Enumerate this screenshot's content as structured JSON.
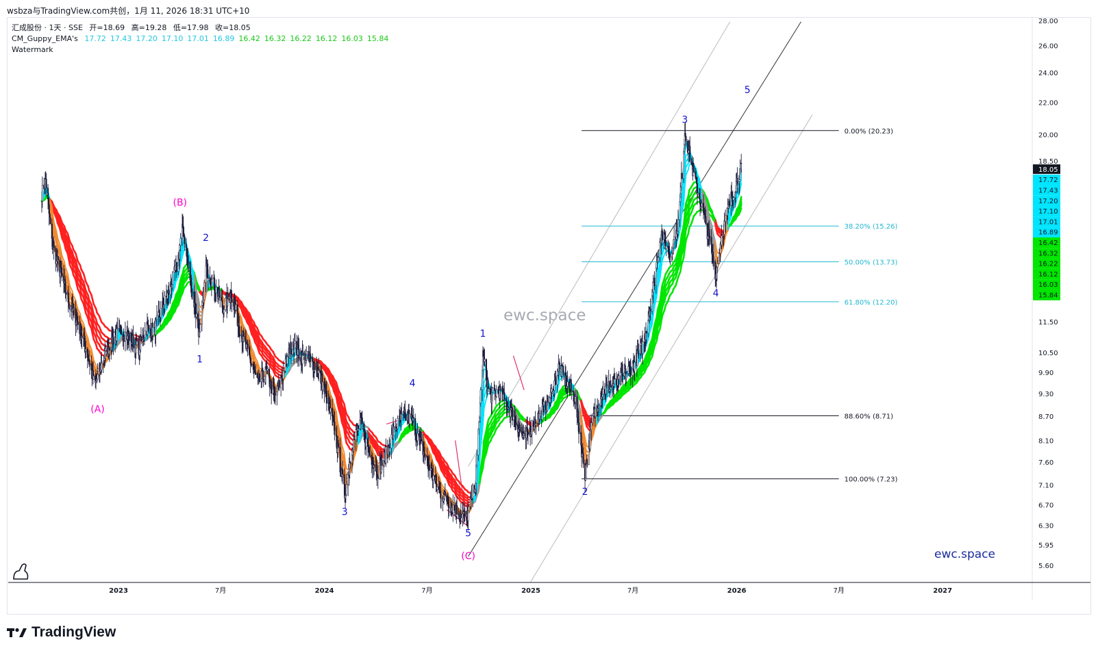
{
  "header": {
    "text": "wsbza与TradingView.com共创，1月 11, 2026 18:31 UTC+10"
  },
  "legend": {
    "symbol": "汇成股份 · 1天 · SSE",
    "open_label": "开=18.69",
    "high_label": "高=19.28",
    "low_label": "低=17.98",
    "close_label": "收=18.05",
    "indicator_name": "CM_Guppy_EMA's",
    "ema_values": [
      "17.72",
      "17.43",
      "17.20",
      "17.10",
      "17.01",
      "16.89",
      "16.42",
      "16.32",
      "16.22",
      "16.12",
      "16.03",
      "15.84"
    ],
    "watermark_label": "Watermark"
  },
  "watermark_text": "ewc.space",
  "brand_corner": "ewc.space",
  "footer": {
    "brand": "TradingView"
  },
  "colors": {
    "fast_ema": "#00e5ff",
    "slow_ema": "#00e600",
    "bear": "#ff2020",
    "bear_fast": "#f08a30",
    "neutral": "#9a9a9a",
    "wave_label": "#1010d0",
    "corrective_label": "#ff00cc",
    "fib_cyan": "#20b8d0",
    "last_price_bg": "#131722"
  },
  "chart_data": {
    "type": "line",
    "scale": "log",
    "ylim": [
      5.3,
      28.0
    ],
    "y_ticks": [
      "28.00",
      "26.00",
      "24.00",
      "22.00",
      "20.00",
      "18.50",
      "11.50",
      "10.50",
      "9.90",
      "9.30",
      "8.70",
      "8.10",
      "7.60",
      "7.10",
      "6.70",
      "6.30",
      "5.95",
      "5.60"
    ],
    "x_ticks": [
      {
        "label": "2023",
        "date": "2023-01-01"
      },
      {
        "label": "7月",
        "date": "2023-07-01"
      },
      {
        "label": "2024",
        "date": "2024-01-01"
      },
      {
        "label": "7月",
        "date": "2024-07-01"
      },
      {
        "label": "2025",
        "date": "2025-01-01"
      },
      {
        "label": "7月",
        "date": "2025-07-01"
      },
      {
        "label": "2026",
        "date": "2026-01-01"
      },
      {
        "label": "7月",
        "date": "2026-07-01"
      },
      {
        "label": "2027",
        "date": "2027-01-01"
      }
    ],
    "price_points": [
      [
        "2022-08-18",
        16.8
      ],
      [
        "2022-08-25",
        17.5
      ],
      [
        "2022-09-05",
        14.5
      ],
      [
        "2022-09-20",
        13.3
      ],
      [
        "2022-10-05",
        12.2
      ],
      [
        "2022-10-20",
        11.5
      ],
      [
        "2022-11-05",
        10.6
      ],
      [
        "2022-11-20",
        9.5
      ],
      [
        "2022-12-05",
        10.3
      ],
      [
        "2022-12-20",
        10.9
      ],
      [
        "2023-01-05",
        11.2
      ],
      [
        "2023-01-20",
        11.0
      ],
      [
        "2023-02-05",
        10.6
      ],
      [
        "2023-02-20",
        11.3
      ],
      [
        "2023-03-05",
        11.2
      ],
      [
        "2023-03-20",
        12.0
      ],
      [
        "2023-04-01",
        12.6
      ],
      [
        "2023-04-15",
        13.6
      ],
      [
        "2023-04-25",
        15.2
      ],
      [
        "2023-05-10",
        12.8
      ],
      [
        "2023-05-25",
        11.0
      ],
      [
        "2023-06-05",
        13.5
      ],
      [
        "2023-06-20",
        12.8
      ],
      [
        "2023-07-05",
        12.0
      ],
      [
        "2023-07-20",
        12.5
      ],
      [
        "2023-08-05",
        11.2
      ],
      [
        "2023-08-20",
        10.4
      ],
      [
        "2023-09-05",
        9.6
      ],
      [
        "2023-09-20",
        9.9
      ],
      [
        "2023-10-05",
        9.2
      ],
      [
        "2023-10-20",
        9.9
      ],
      [
        "2023-11-05",
        10.8
      ],
      [
        "2023-11-20",
        10.4
      ],
      [
        "2023-12-05",
        10.3
      ],
      [
        "2023-12-20",
        10.0
      ],
      [
        "2024-01-05",
        9.2
      ],
      [
        "2024-01-20",
        8.3
      ],
      [
        "2024-02-06",
        6.9
      ],
      [
        "2024-02-20",
        8.0
      ],
      [
        "2024-03-05",
        8.6
      ],
      [
        "2024-03-20",
        7.8
      ],
      [
        "2024-04-05",
        7.4
      ],
      [
        "2024-04-20",
        7.8
      ],
      [
        "2024-05-05",
        8.4
      ],
      [
        "2024-05-20",
        8.7
      ],
      [
        "2024-06-05",
        8.6
      ],
      [
        "2024-06-20",
        8.0
      ],
      [
        "2024-07-05",
        7.5
      ],
      [
        "2024-07-20",
        7.0
      ],
      [
        "2024-08-05",
        6.8
      ],
      [
        "2024-08-20",
        6.6
      ],
      [
        "2024-09-10",
        6.45
      ],
      [
        "2024-09-25",
        7.2
      ],
      [
        "2024-10-08",
        10.4
      ],
      [
        "2024-10-20",
        9.2
      ],
      [
        "2024-11-05",
        9.4
      ],
      [
        "2024-11-20",
        9.0
      ],
      [
        "2024-12-05",
        8.6
      ],
      [
        "2024-12-20",
        8.1
      ],
      [
        "2025-01-05",
        8.5
      ],
      [
        "2025-01-20",
        8.8
      ],
      [
        "2025-02-05",
        9.2
      ],
      [
        "2025-02-20",
        10.1
      ],
      [
        "2025-03-05",
        9.6
      ],
      [
        "2025-03-20",
        9.2
      ],
      [
        "2025-04-07",
        7.3
      ],
      [
        "2025-04-20",
        8.6
      ],
      [
        "2025-05-05",
        9.3
      ],
      [
        "2025-05-20",
        9.5
      ],
      [
        "2025-06-05",
        9.6
      ],
      [
        "2025-06-20",
        9.9
      ],
      [
        "2025-07-05",
        10.2
      ],
      [
        "2025-07-20",
        10.8
      ],
      [
        "2025-08-05",
        12.6
      ],
      [
        "2025-08-20",
        15.0
      ],
      [
        "2025-09-05",
        14.0
      ],
      [
        "2025-09-20",
        15.5
      ],
      [
        "2025-10-01",
        20.2
      ],
      [
        "2025-10-15",
        18.0
      ],
      [
        "2025-11-01",
        16.0
      ],
      [
        "2025-11-15",
        14.5
      ],
      [
        "2025-11-25",
        13.2
      ],
      [
        "2025-12-05",
        14.8
      ],
      [
        "2025-12-20",
        16.4
      ],
      [
        "2026-01-05",
        17.8
      ],
      [
        "2026-01-09",
        18.05
      ]
    ],
    "ema_ribbon": {
      "fast": [
        "17.72",
        "17.43",
        "17.20",
        "17.10",
        "17.01",
        "16.89"
      ],
      "slow": [
        "16.42",
        "16.32",
        "16.22",
        "16.12",
        "16.03",
        "15.84"
      ]
    },
    "last_price": "18.05",
    "fibonacci": {
      "start_date": "2025-04-01",
      "end_date": "2026-07-01",
      "levels": [
        {
          "label": "0.00% (20.23)",
          "price": 20.23,
          "color": "#131722"
        },
        {
          "label": "38.20% (15.26)",
          "price": 15.26,
          "color": "#20b8d0"
        },
        {
          "label": "50.00% (13.73)",
          "price": 13.73,
          "color": "#20b8d0"
        },
        {
          "label": "61.80% (12.20)",
          "price": 12.2,
          "color": "#20b8d0"
        },
        {
          "label": "88.60% (8.71)",
          "price": 8.71,
          "color": "#131722"
        },
        {
          "label": "100.00% (7.23)",
          "price": 7.23,
          "color": "#131722"
        }
      ]
    },
    "wave_labels": [
      {
        "text": "(A)",
        "date": "2022-11-25",
        "price": 8.8,
        "kind": "corrective"
      },
      {
        "text": "(B)",
        "date": "2023-04-20",
        "price": 16.2,
        "kind": "corrective"
      },
      {
        "text": "(C)",
        "date": "2024-09-12",
        "price": 5.7,
        "kind": "corrective"
      },
      {
        "text": "1",
        "date": "2023-05-25",
        "price": 10.2,
        "kind": "impulse"
      },
      {
        "text": "2",
        "date": "2023-06-05",
        "price": 14.6,
        "kind": "impulse"
      },
      {
        "text": "3",
        "date": "2024-02-06",
        "price": 6.5,
        "kind": "impulse"
      },
      {
        "text": "4",
        "date": "2024-06-05",
        "price": 9.5,
        "kind": "impulse"
      },
      {
        "text": "5",
        "date": "2024-09-12",
        "price": 6.1,
        "kind": "impulse"
      },
      {
        "text": "1",
        "date": "2024-10-08",
        "price": 11.0,
        "kind": "impulse"
      },
      {
        "text": "2",
        "date": "2025-04-07",
        "price": 6.9,
        "kind": "impulse"
      },
      {
        "text": "3",
        "date": "2025-10-01",
        "price": 20.7,
        "kind": "impulse"
      },
      {
        "text": "4",
        "date": "2025-11-25",
        "price": 12.4,
        "kind": "impulse"
      },
      {
        "text": "5",
        "date": "2026-01-20",
        "price": 22.6,
        "kind": "impulse"
      }
    ],
    "channel_lines": [
      {
        "from": [
          "2024-09-12",
          5.75
        ],
        "to": [
          "2026-04-25",
          27.9
        ],
        "color": "#444444"
      },
      {
        "from": [
          "2024-09-12",
          7.5
        ],
        "to": [
          "2025-12-20",
          27.9
        ],
        "color": "#c0c0c0"
      },
      {
        "from": [
          "2024-12-01",
          4.9
        ],
        "to": [
          "2026-05-15",
          21.2
        ],
        "color": "#c0c0c0"
      }
    ],
    "trend_lines": [
      {
        "from": [
          "2024-12-01",
          10.4
        ],
        "to": [
          "2024-12-20",
          9.4
        ],
        "color": "#e0306a"
      },
      {
        "from": [
          "2024-08-20",
          8.1
        ],
        "to": [
          "2024-09-10",
          6.3
        ],
        "color": "#e0306a"
      },
      {
        "from": [
          "2024-08-05",
          6.6
        ],
        "to": [
          "2024-09-10",
          6.3
        ],
        "color": "#e0306a"
      },
      {
        "from": [
          "2024-04-20",
          8.5
        ],
        "to": [
          "2024-06-05",
          8.7
        ],
        "color": "#e0306a"
      }
    ]
  }
}
